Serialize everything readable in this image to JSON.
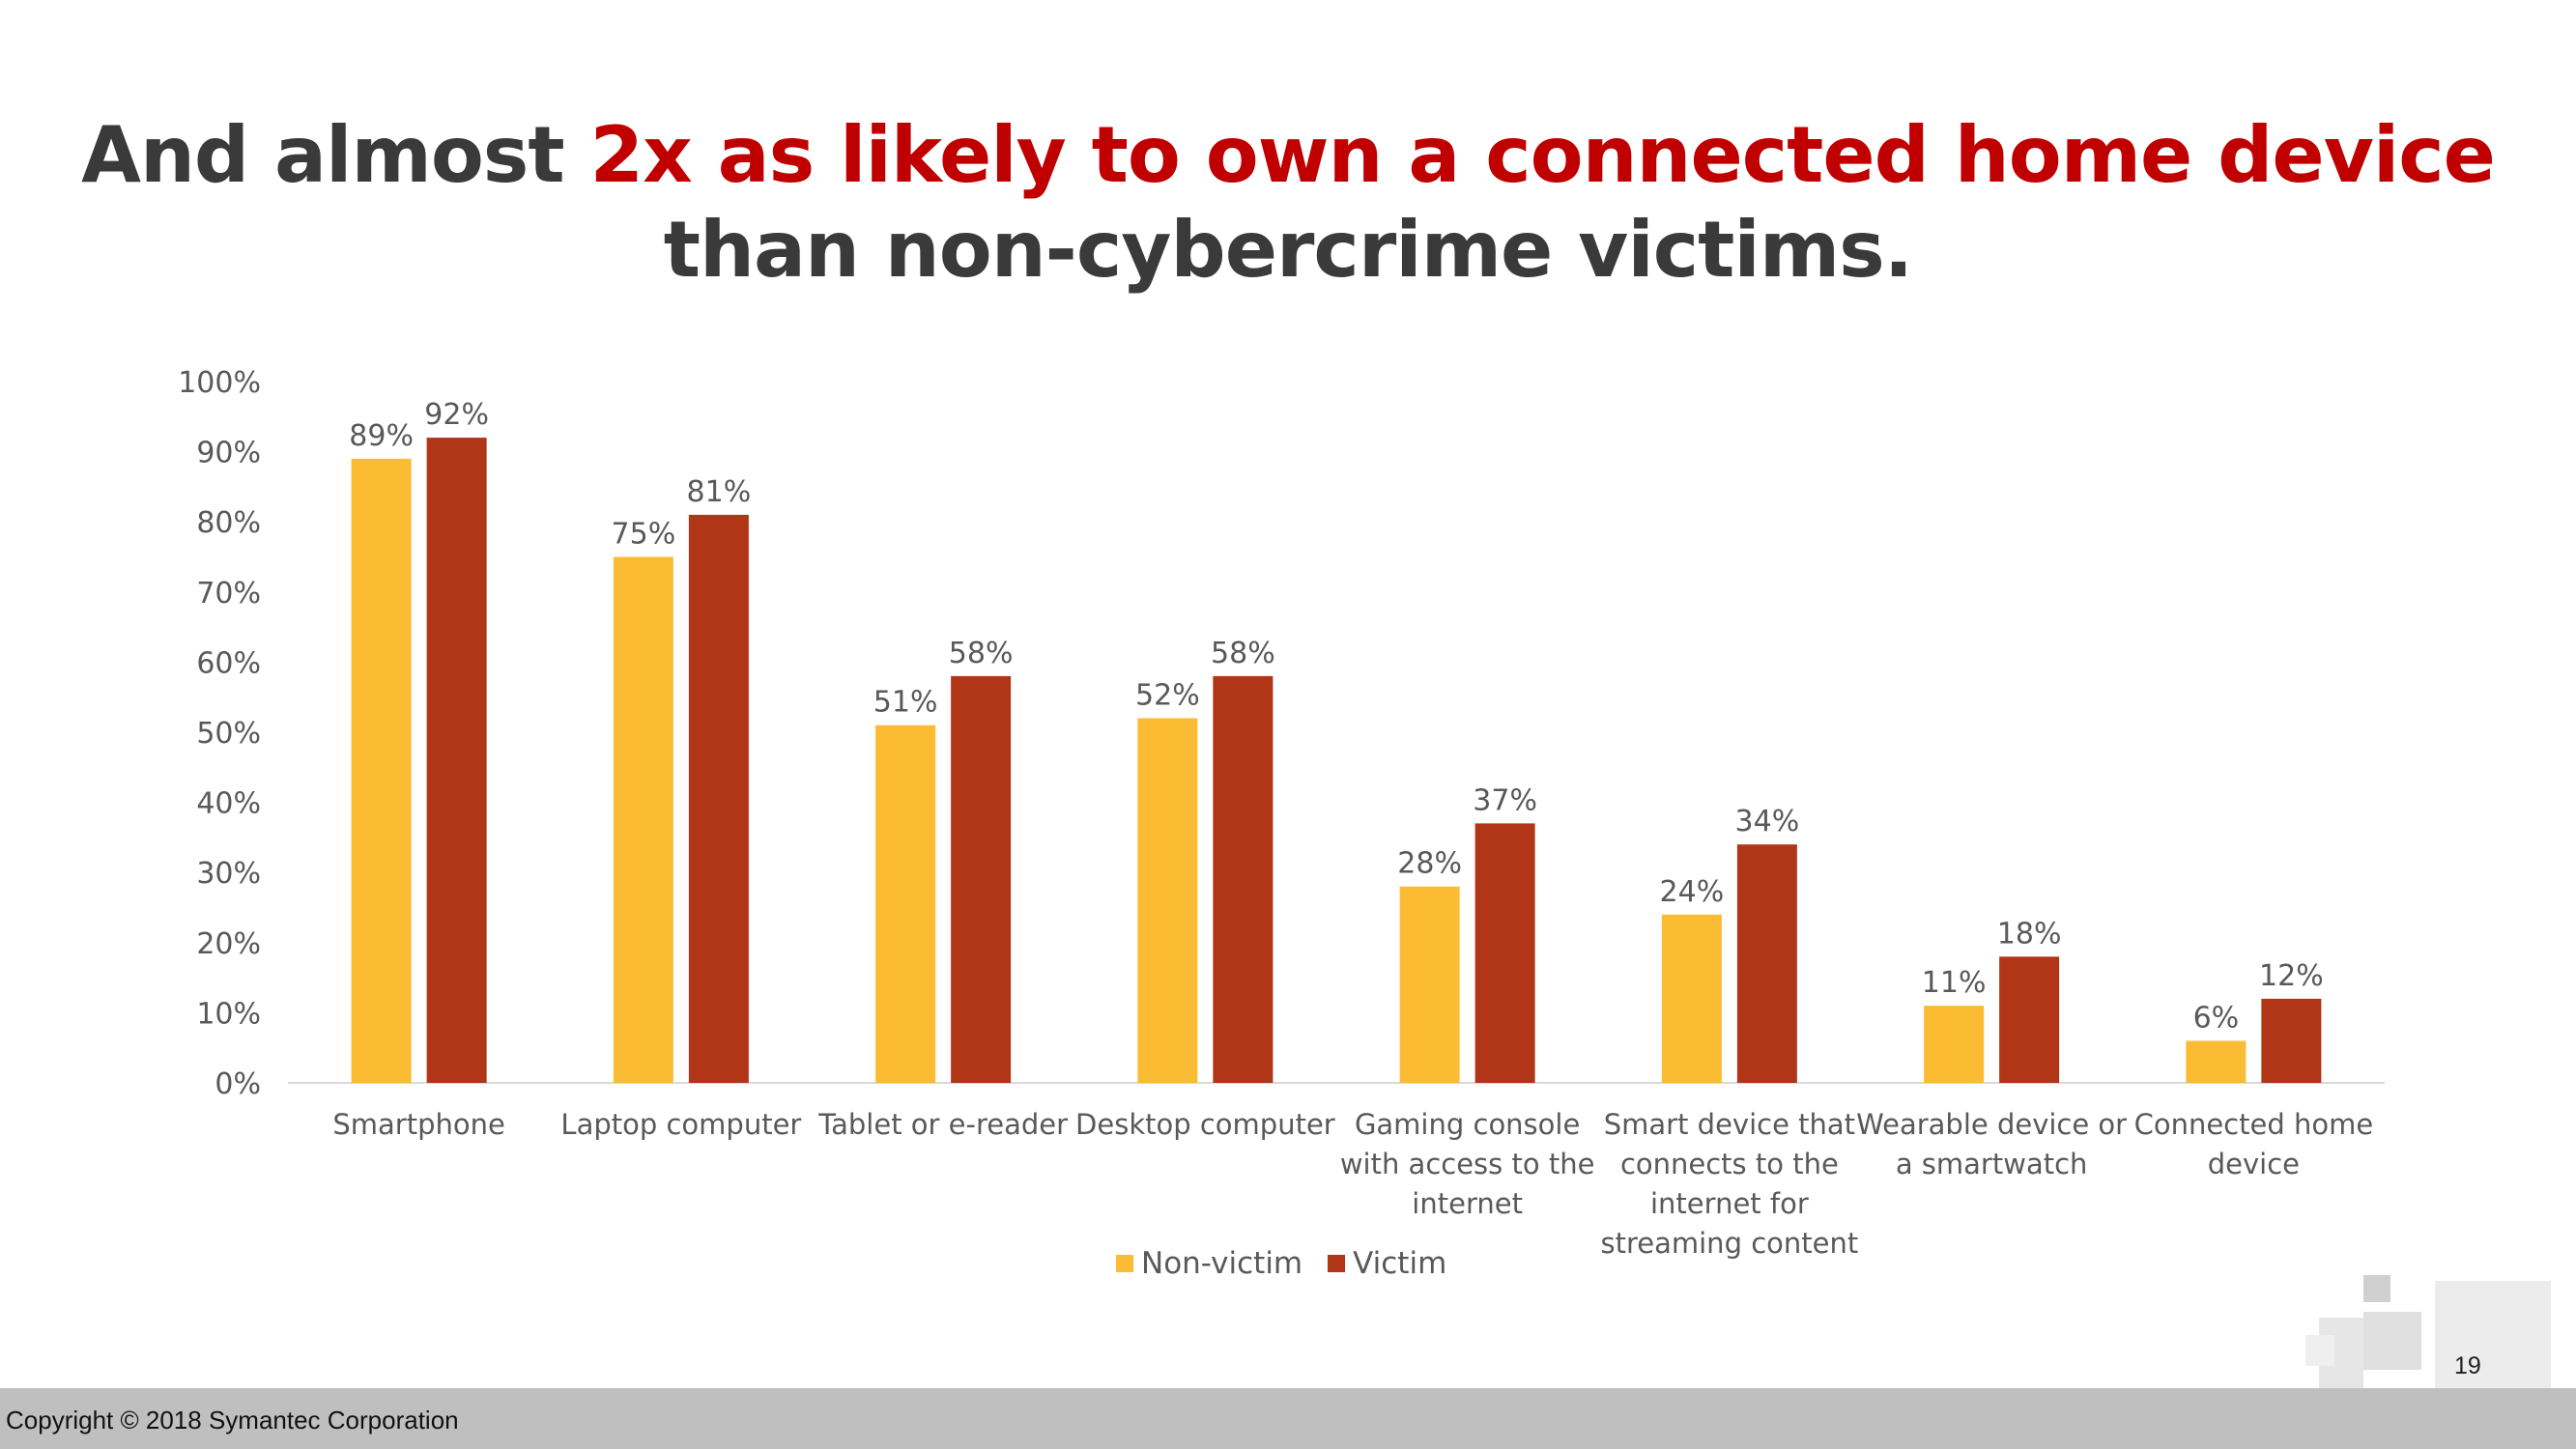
{
  "slide": {
    "title_line1_prefix": "And almost ",
    "title_line1_accent": "2x as likely to own a connected home device",
    "title_line2": "than non-cybercrime victims.",
    "copyright": "Copyright © 2018 Symantec Corporation",
    "page_number": "19",
    "colors": {
      "title": "#3a3a3a",
      "accent": "#c00000",
      "footer": "#bfbfbf"
    }
  },
  "chart_data": {
    "type": "bar",
    "title": "",
    "xlabel": "",
    "ylabel": "",
    "ylim": [
      0,
      100
    ],
    "yticks": [
      "0%",
      "10%",
      "20%",
      "30%",
      "40%",
      "50%",
      "60%",
      "70%",
      "80%",
      "90%",
      "100%"
    ],
    "grid": false,
    "legend_position": "bottom",
    "categories": [
      [
        "Smartphone"
      ],
      [
        "Laptop computer"
      ],
      [
        "Tablet or e-reader"
      ],
      [
        "Desktop computer"
      ],
      [
        "Gaming console",
        "with access to the",
        "internet"
      ],
      [
        "Smart device that",
        "connects to the",
        "internet for",
        "streaming content"
      ],
      [
        "Wearable device or",
        "a smartwatch"
      ],
      [
        "Connected home",
        "device"
      ]
    ],
    "series": [
      {
        "name": "Non-victim",
        "color": "#fbbc34",
        "values": [
          89,
          75,
          51,
          52,
          28,
          24,
          11,
          6
        ],
        "labels": [
          "89%",
          "75%",
          "51%",
          "52%",
          "28%",
          "24%",
          "11%",
          "6%"
        ]
      },
      {
        "name": "Victim",
        "color": "#b03617",
        "values": [
          92,
          81,
          58,
          58,
          37,
          34,
          18,
          12
        ],
        "labels": [
          "92%",
          "81%",
          "58%",
          "58%",
          "37%",
          "34%",
          "18%",
          "12%"
        ]
      }
    ]
  }
}
